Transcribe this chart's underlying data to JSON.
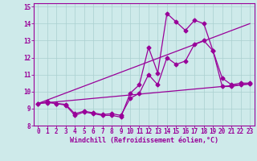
{
  "background_color": "#ceeaea",
  "line_color": "#990099",
  "grid_color": "#aacfcf",
  "xlabel": "Windchill (Refroidissement éolien,°C)",
  "xlim": [
    -0.5,
    23.5
  ],
  "ylim": [
    8,
    15.2
  ],
  "yticks": [
    8,
    9,
    10,
    11,
    12,
    13,
    14,
    15
  ],
  "xticks": [
    0,
    1,
    2,
    3,
    4,
    5,
    6,
    7,
    8,
    9,
    10,
    11,
    12,
    13,
    14,
    15,
    16,
    17,
    18,
    19,
    20,
    21,
    22,
    23
  ],
  "series1_x": [
    0,
    1,
    2,
    3,
    4,
    5,
    6,
    7,
    8,
    9,
    10,
    11,
    12,
    13,
    14,
    15,
    16,
    17,
    18,
    19,
    20,
    21,
    22,
    23
  ],
  "series1_y": [
    9.3,
    9.4,
    9.3,
    9.2,
    8.6,
    8.8,
    8.7,
    8.6,
    8.6,
    8.5,
    9.9,
    10.4,
    12.6,
    11.1,
    14.6,
    14.1,
    13.6,
    14.2,
    14.0,
    12.4,
    10.8,
    10.4,
    10.5,
    10.5
  ],
  "series2_x": [
    0,
    1,
    2,
    3,
    4,
    5,
    6,
    7,
    8,
    9,
    10,
    11,
    12,
    13,
    14,
    15,
    16,
    17,
    18,
    19,
    20,
    21,
    22,
    23
  ],
  "series2_y": [
    9.3,
    9.35,
    9.3,
    9.25,
    8.7,
    8.85,
    8.75,
    8.65,
    8.7,
    8.6,
    9.6,
    9.9,
    11.0,
    10.4,
    12.0,
    11.6,
    11.8,
    12.8,
    13.0,
    12.4,
    10.3,
    10.3,
    10.4,
    10.45
  ],
  "series3_x": [
    0,
    23
  ],
  "series3_y": [
    9.3,
    10.45
  ],
  "series4_x": [
    0,
    23
  ],
  "series4_y": [
    9.3,
    14.0
  ],
  "font_size_ticks": 5.5,
  "font_size_label": 6.0,
  "marker_size": 2.5,
  "line_width": 0.9
}
